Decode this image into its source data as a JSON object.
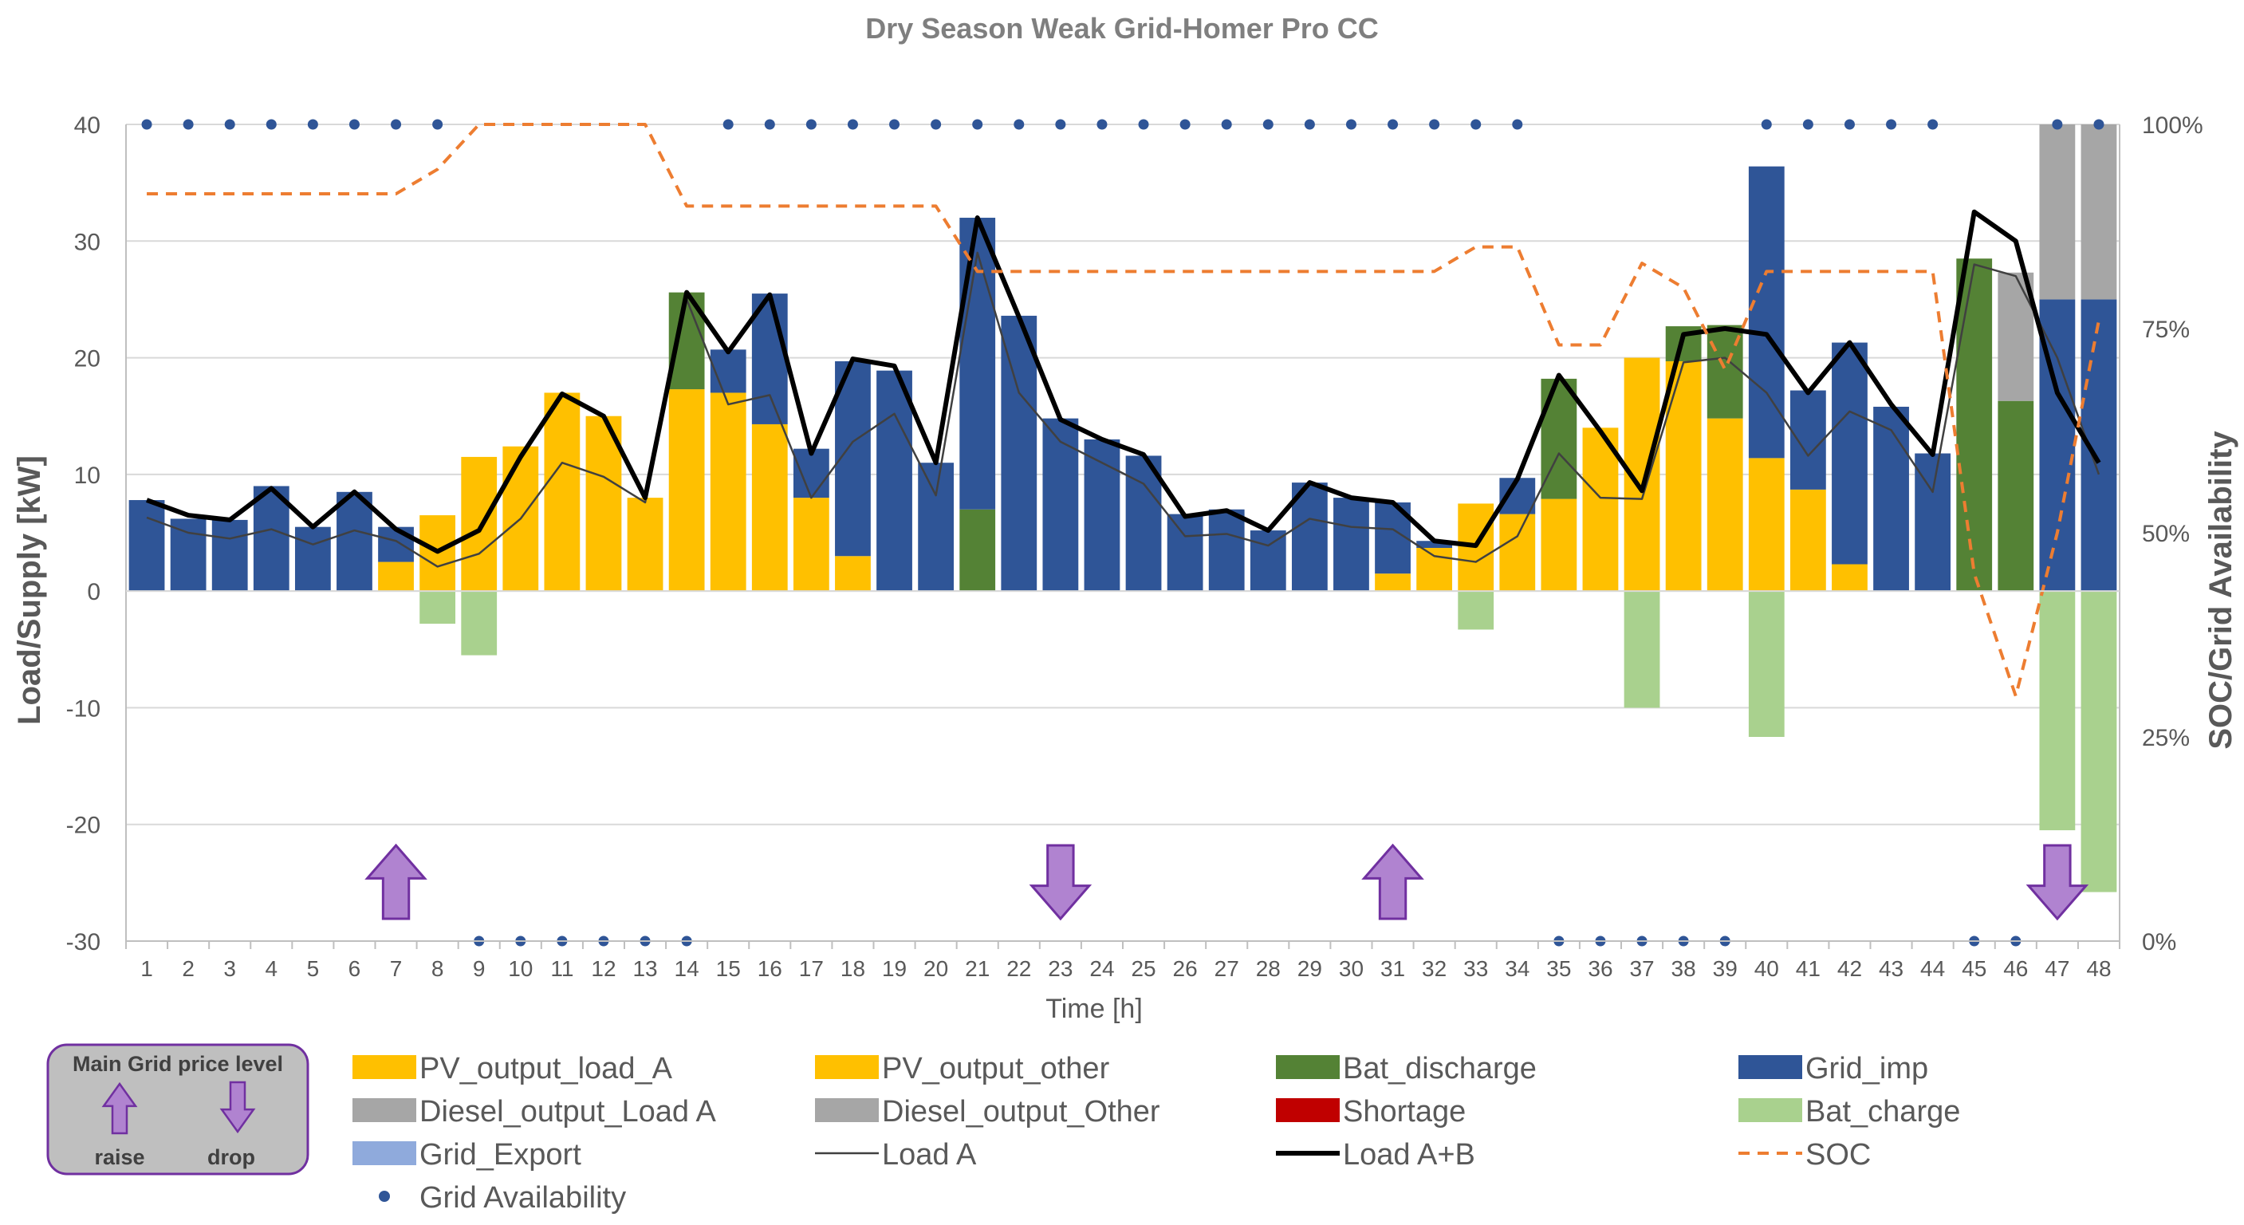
{
  "chart_data": {
    "type": "bar",
    "title": "Dry Season Weak Grid-Homer Pro CC",
    "xlabel": "Time [h]",
    "ylabel": "Load/Supply [kW]",
    "y2label": "SOC/Grid Availability",
    "ylim": [
      -30,
      40
    ],
    "yticks": [
      "40",
      "30",
      "20",
      "10",
      "0",
      "-10",
      "-20",
      "-30"
    ],
    "y2ticks": [
      "100%",
      "75%",
      "50%",
      "25%",
      "0%"
    ],
    "categories": [
      "1",
      "2",
      "3",
      "4",
      "5",
      "6",
      "7",
      "8",
      "9",
      "10",
      "11",
      "12",
      "13",
      "14",
      "15",
      "16",
      "17",
      "18",
      "19",
      "20",
      "21",
      "22",
      "23",
      "24",
      "25",
      "26",
      "27",
      "28",
      "29",
      "30",
      "31",
      "32",
      "33",
      "34",
      "35",
      "36",
      "37",
      "38",
      "39",
      "40",
      "41",
      "42",
      "43",
      "44",
      "45",
      "46",
      "47",
      "48"
    ],
    "series": [
      {
        "name": "PV_output_load_A",
        "kind": "bar",
        "color": "#FFC000",
        "values": [
          0,
          0,
          0,
          0,
          0,
          0,
          2.5,
          6.5,
          11.5,
          12.4,
          17.0,
          15.0,
          8.0,
          17.3,
          17.0,
          14.3,
          8.0,
          3.0,
          0,
          0,
          0,
          0,
          0,
          0,
          0,
          0,
          0,
          0,
          0,
          0,
          1.5,
          3.7,
          7.5,
          6.6,
          7.9,
          14.0,
          20.0,
          19.7,
          14.8,
          11.4,
          8.7,
          2.3,
          0,
          0,
          0,
          0,
          0,
          0
        ]
      },
      {
        "name": "PV_output_other",
        "kind": "bar",
        "color": "#FFC000",
        "values": [
          0,
          0,
          0,
          0,
          0,
          0,
          0,
          0,
          0,
          0,
          0,
          0,
          0,
          0,
          0,
          0,
          0,
          0,
          0,
          0,
          0,
          0,
          0,
          0,
          0,
          0,
          0,
          0,
          0,
          0,
          0,
          0,
          0,
          0,
          0,
          0,
          0,
          0,
          0,
          0,
          0,
          0,
          0,
          0,
          0,
          0,
          0,
          0
        ]
      },
      {
        "name": "Bat_discharge",
        "kind": "bar",
        "color": "#548235",
        "values": [
          0,
          0,
          0,
          0,
          0,
          0,
          0,
          0,
          0,
          0,
          0,
          0,
          0,
          8.3,
          0,
          0,
          0,
          0,
          0,
          0,
          7.0,
          0,
          0,
          0,
          0,
          0,
          0,
          0,
          0,
          0,
          0,
          0,
          0,
          0,
          10.3,
          0,
          0,
          3.0,
          8.0,
          0,
          0,
          0,
          0,
          0,
          28.5,
          16.3,
          0,
          0
        ]
      },
      {
        "name": "Grid_imp",
        "kind": "bar",
        "color": "#2F5597",
        "values": [
          7.8,
          6.2,
          6.1,
          9.0,
          5.5,
          8.5,
          3.0,
          0,
          0,
          0,
          0,
          0,
          0,
          0,
          3.7,
          11.2,
          4.2,
          16.7,
          18.9,
          11.0,
          25.0,
          23.6,
          14.8,
          13.0,
          11.6,
          6.6,
          7.0,
          5.2,
          9.3,
          8.0,
          6.1,
          0.6,
          0,
          3.1,
          0,
          0,
          0,
          0,
          0,
          25.0,
          8.5,
          19.0,
          15.8,
          11.8,
          0,
          0,
          25.0,
          25.0
        ]
      },
      {
        "name": "Diesel_output_Load A",
        "kind": "bar",
        "color": "#A6A6A6",
        "values": [
          0,
          0,
          0,
          0,
          0,
          0,
          0,
          0,
          0,
          0,
          0,
          0,
          0,
          0,
          0,
          0,
          0,
          0,
          0,
          0,
          0,
          0,
          0,
          0,
          0,
          0,
          0,
          0,
          0,
          0,
          0,
          0,
          0,
          0,
          0,
          0,
          0,
          0,
          0,
          0,
          0,
          0,
          0,
          0,
          0,
          11.0,
          15.0,
          15.0
        ]
      },
      {
        "name": "Diesel_output_Other",
        "kind": "bar",
        "color": "#A6A6A6",
        "values": [
          0,
          0,
          0,
          0,
          0,
          0,
          0,
          0,
          0,
          0,
          0,
          0,
          0,
          0,
          0,
          0,
          0,
          0,
          0,
          0,
          0,
          0,
          0,
          0,
          0,
          0,
          0,
          0,
          0,
          0,
          0,
          0,
          0,
          0,
          0,
          0,
          0,
          0,
          0,
          0,
          0,
          0,
          0,
          0,
          0,
          0,
          0,
          0
        ]
      },
      {
        "name": "Shortage",
        "kind": "bar",
        "color": "#C00000",
        "values": [
          0,
          0,
          0,
          0,
          0,
          0,
          0,
          0,
          0,
          0,
          0,
          0,
          0,
          0,
          0,
          0,
          0,
          0,
          0,
          0,
          0,
          0,
          0,
          0,
          0,
          0,
          0,
          0,
          0,
          0,
          0,
          0,
          0,
          0,
          0,
          0,
          0,
          0,
          0,
          0,
          0,
          0,
          0,
          0,
          0,
          0,
          0,
          0
        ]
      },
      {
        "name": "Bat_charge",
        "kind": "bar",
        "color": "#A9D18E",
        "values": [
          0,
          0,
          0,
          0,
          0,
          0,
          0,
          -2.8,
          -5.5,
          0,
          0,
          0,
          0,
          0,
          0,
          0,
          0,
          0,
          0,
          0,
          0,
          0,
          0,
          0,
          0,
          0,
          0,
          0,
          0,
          0,
          0,
          0,
          -3.3,
          0,
          0,
          0,
          -10.0,
          0,
          0,
          -12.5,
          0,
          0,
          0,
          0,
          0,
          0,
          -20.5,
          -25.8
        ]
      },
      {
        "name": "Grid_Export",
        "kind": "bar",
        "color": "#8FAADC",
        "values": [
          0,
          0,
          0,
          0,
          0,
          0,
          0,
          0,
          0,
          0,
          0,
          0,
          0,
          0,
          0,
          0,
          0,
          0,
          0,
          0,
          0,
          0,
          0,
          0,
          0,
          0,
          0,
          0,
          0,
          0,
          0,
          0,
          0,
          0,
          0,
          0,
          0,
          0,
          0,
          0,
          0,
          0,
          0,
          0,
          0,
          0,
          0,
          0
        ]
      },
      {
        "name": "Load A",
        "kind": "line",
        "color": "#404040",
        "values": [
          6.3,
          5.0,
          4.5,
          5.3,
          4.0,
          5.2,
          4.3,
          2.1,
          3.2,
          6.2,
          11.0,
          9.8,
          7.6,
          25.0,
          16.0,
          16.8,
          8.0,
          12.8,
          15.2,
          8.2,
          29.0,
          17.0,
          12.8,
          11.0,
          9.2,
          4.7,
          4.9,
          3.9,
          6.2,
          5.5,
          5.3,
          3.0,
          2.5,
          4.7,
          11.8,
          8.0,
          7.9,
          19.6,
          20.0,
          17.0,
          11.6,
          15.4,
          13.8,
          8.5,
          28.0,
          27.0,
          20.0,
          10.0
        ]
      },
      {
        "name": "Load A+B",
        "kind": "line",
        "color": "#000000",
        "values": [
          7.8,
          6.5,
          6.1,
          8.8,
          5.5,
          8.5,
          5.3,
          3.4,
          5.2,
          11.5,
          16.9,
          15.0,
          8.0,
          25.6,
          20.5,
          25.4,
          11.8,
          19.9,
          19.3,
          11.0,
          32.0,
          23.5,
          14.7,
          13.0,
          11.7,
          6.4,
          6.9,
          5.2,
          9.3,
          8.0,
          7.6,
          4.3,
          3.9,
          9.6,
          18.5,
          13.7,
          8.6,
          22.0,
          22.5,
          22.0,
          17.0,
          21.3,
          16.0,
          11.7,
          32.5,
          30.0,
          17.0,
          11.0
        ]
      },
      {
        "name": "SOC",
        "kind": "line",
        "axis": "y2",
        "color": "#ED7D31",
        "values": [
          91.5,
          91.5,
          91.5,
          91.5,
          91.5,
          91.5,
          91.5,
          94.5,
          100,
          100,
          100,
          100,
          100,
          90,
          90,
          90,
          90,
          90,
          90,
          90,
          82,
          82,
          82,
          82,
          82,
          82,
          82,
          82,
          82,
          82,
          82,
          82,
          85,
          85,
          73,
          73,
          83,
          80,
          70,
          82,
          82,
          82,
          82,
          82,
          45,
          30,
          50,
          76
        ]
      },
      {
        "name": "Grid Availability",
        "kind": "dots",
        "color": "#2F5597",
        "values": [
          1,
          1,
          1,
          1,
          1,
          1,
          1,
          1,
          0,
          0,
          0,
          0,
          0,
          0,
          1,
          1,
          1,
          1,
          1,
          1,
          1,
          1,
          1,
          1,
          1,
          1,
          1,
          1,
          1,
          1,
          1,
          1,
          1,
          1,
          0,
          0,
          0,
          0,
          0,
          1,
          1,
          1,
          1,
          1,
          0,
          0,
          1,
          1
        ]
      }
    ],
    "price_arrows": [
      {
        "hour": 7,
        "direction": "raise"
      },
      {
        "hour": 23,
        "direction": "drop"
      },
      {
        "hour": 31,
        "direction": "raise"
      },
      {
        "hour": 47,
        "direction": "drop"
      }
    ],
    "price_legend": {
      "title": "Main Grid price level",
      "raise": "raise",
      "drop": "drop"
    },
    "legend_order": [
      "PV_output_load_A",
      "PV_output_other",
      "Bat_discharge",
      "Grid_imp",
      "Diesel_output_Load A",
      "Diesel_output_Other",
      "Shortage",
      "Bat_charge",
      "Grid_Export",
      "Load A",
      "Load A+B",
      "SOC",
      "Grid Availability"
    ]
  }
}
